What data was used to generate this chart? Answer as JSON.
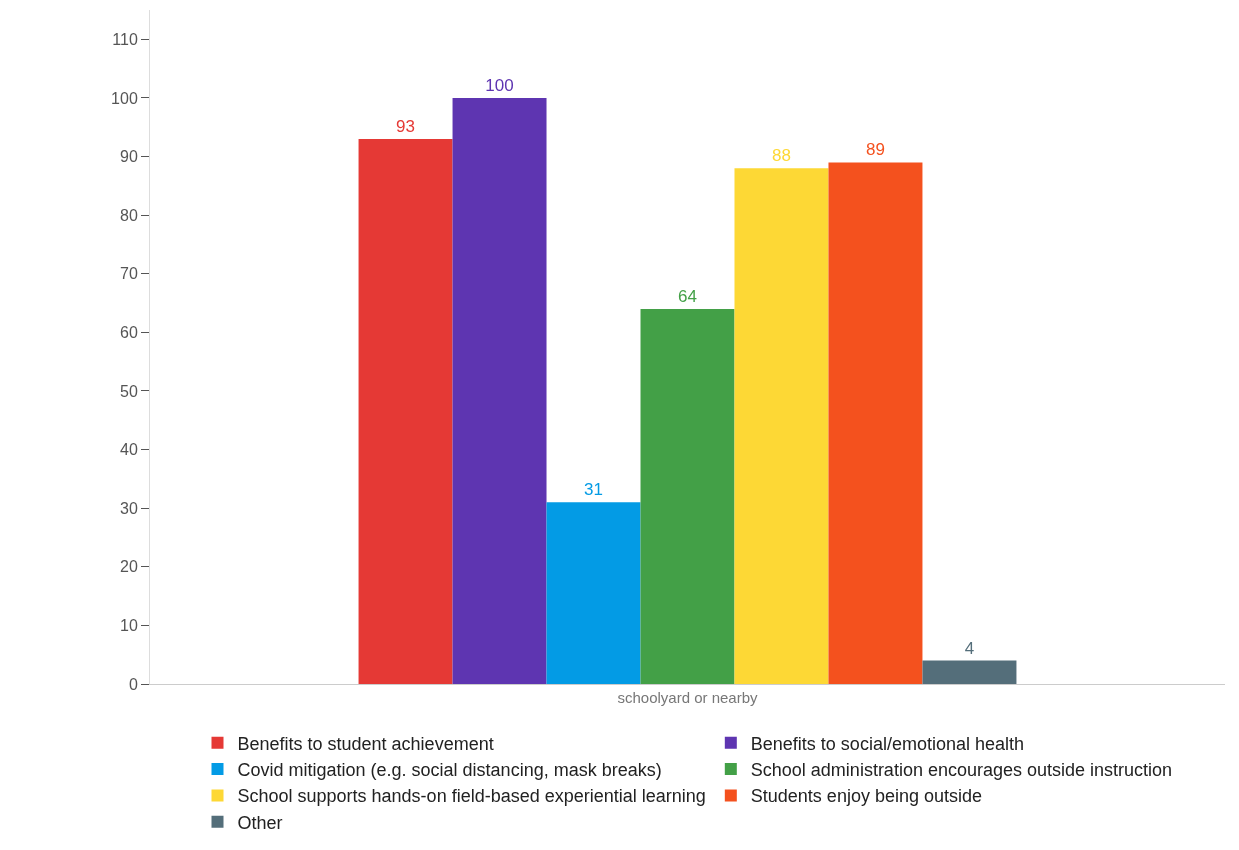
{
  "chart_data": {
    "type": "bar",
    "categories": [
      "schoolyard or nearby"
    ],
    "series": [
      {
        "name": "Benefits to student achievement",
        "color": "#e53935",
        "values": [
          93
        ]
      },
      {
        "name": "Benefits to social/emotional health",
        "color": "#5e35b1",
        "values": [
          100
        ]
      },
      {
        "name": "Covid mitigation (e.g. social distancing, mask breaks)",
        "color": "#039be5",
        "values": [
          31
        ]
      },
      {
        "name": "School administration encourages outside instruction",
        "color": "#43a047",
        "values": [
          64
        ]
      },
      {
        "name": "School supports hands-on field-based experiential learning",
        "color": "#fdd835",
        "values": [
          88
        ]
      },
      {
        "name": "Students enjoy being outside",
        "color": "#f4511e",
        "values": [
          89
        ]
      },
      {
        "name": "Other",
        "color": "#546e7a",
        "values": [
          4
        ]
      }
    ],
    "ylim": [
      0,
      115
    ],
    "yticks": [
      0,
      10,
      20,
      30,
      40,
      50,
      60,
      70,
      80,
      90,
      100,
      110
    ],
    "grid": false,
    "legend": "bottom",
    "data_labels": true
  }
}
